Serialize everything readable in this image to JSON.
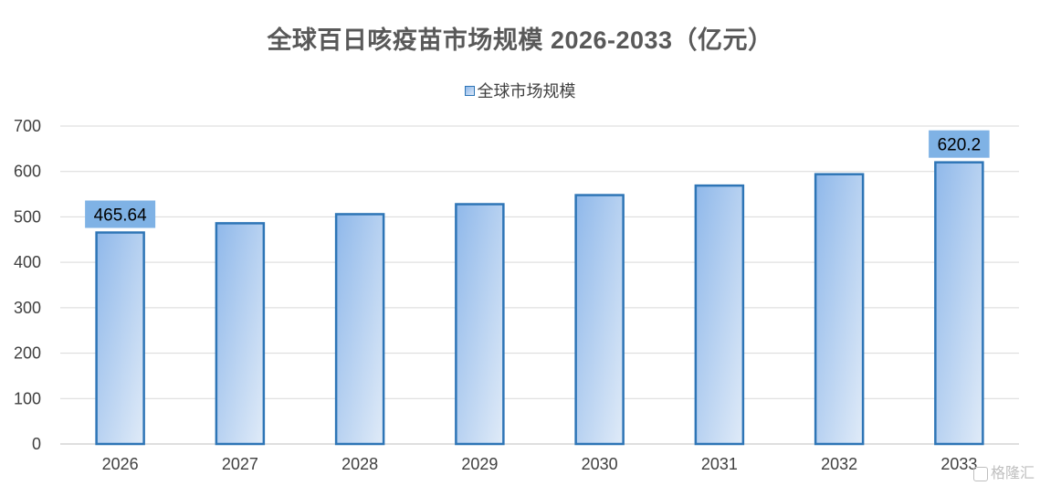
{
  "chart_data": {
    "type": "bar",
    "title": "全球百日咳疫苗市场规模 2026-2033（亿元）",
    "categories": [
      "2026",
      "2027",
      "2028",
      "2029",
      "2030",
      "2031",
      "2032",
      "2033"
    ],
    "series": [
      {
        "name": "全球市场规模",
        "values": [
          465.64,
          486,
          506,
          528,
          548,
          569,
          594,
          620.2
        ]
      }
    ],
    "data_labels": [
      {
        "category": "2026",
        "text": "465.64"
      },
      {
        "category": "2033",
        "text": "620.2"
      }
    ],
    "ylim": [
      0,
      700
    ],
    "yticks": [
      0,
      100,
      200,
      300,
      400,
      500,
      600,
      700
    ],
    "grid": true,
    "legend_position": "top",
    "colors": {
      "bar_border": "#2E75B6",
      "bar_fill_dark": "#8FB8EA",
      "bar_fill_light": "#DCE8F7",
      "label_bg": "#7FB2E5",
      "grid": "#D9D9D9",
      "axis": "#BFBFBF"
    }
  },
  "watermark": {
    "text": "格隆汇",
    "icon": "gelonghui-logo-icon"
  }
}
